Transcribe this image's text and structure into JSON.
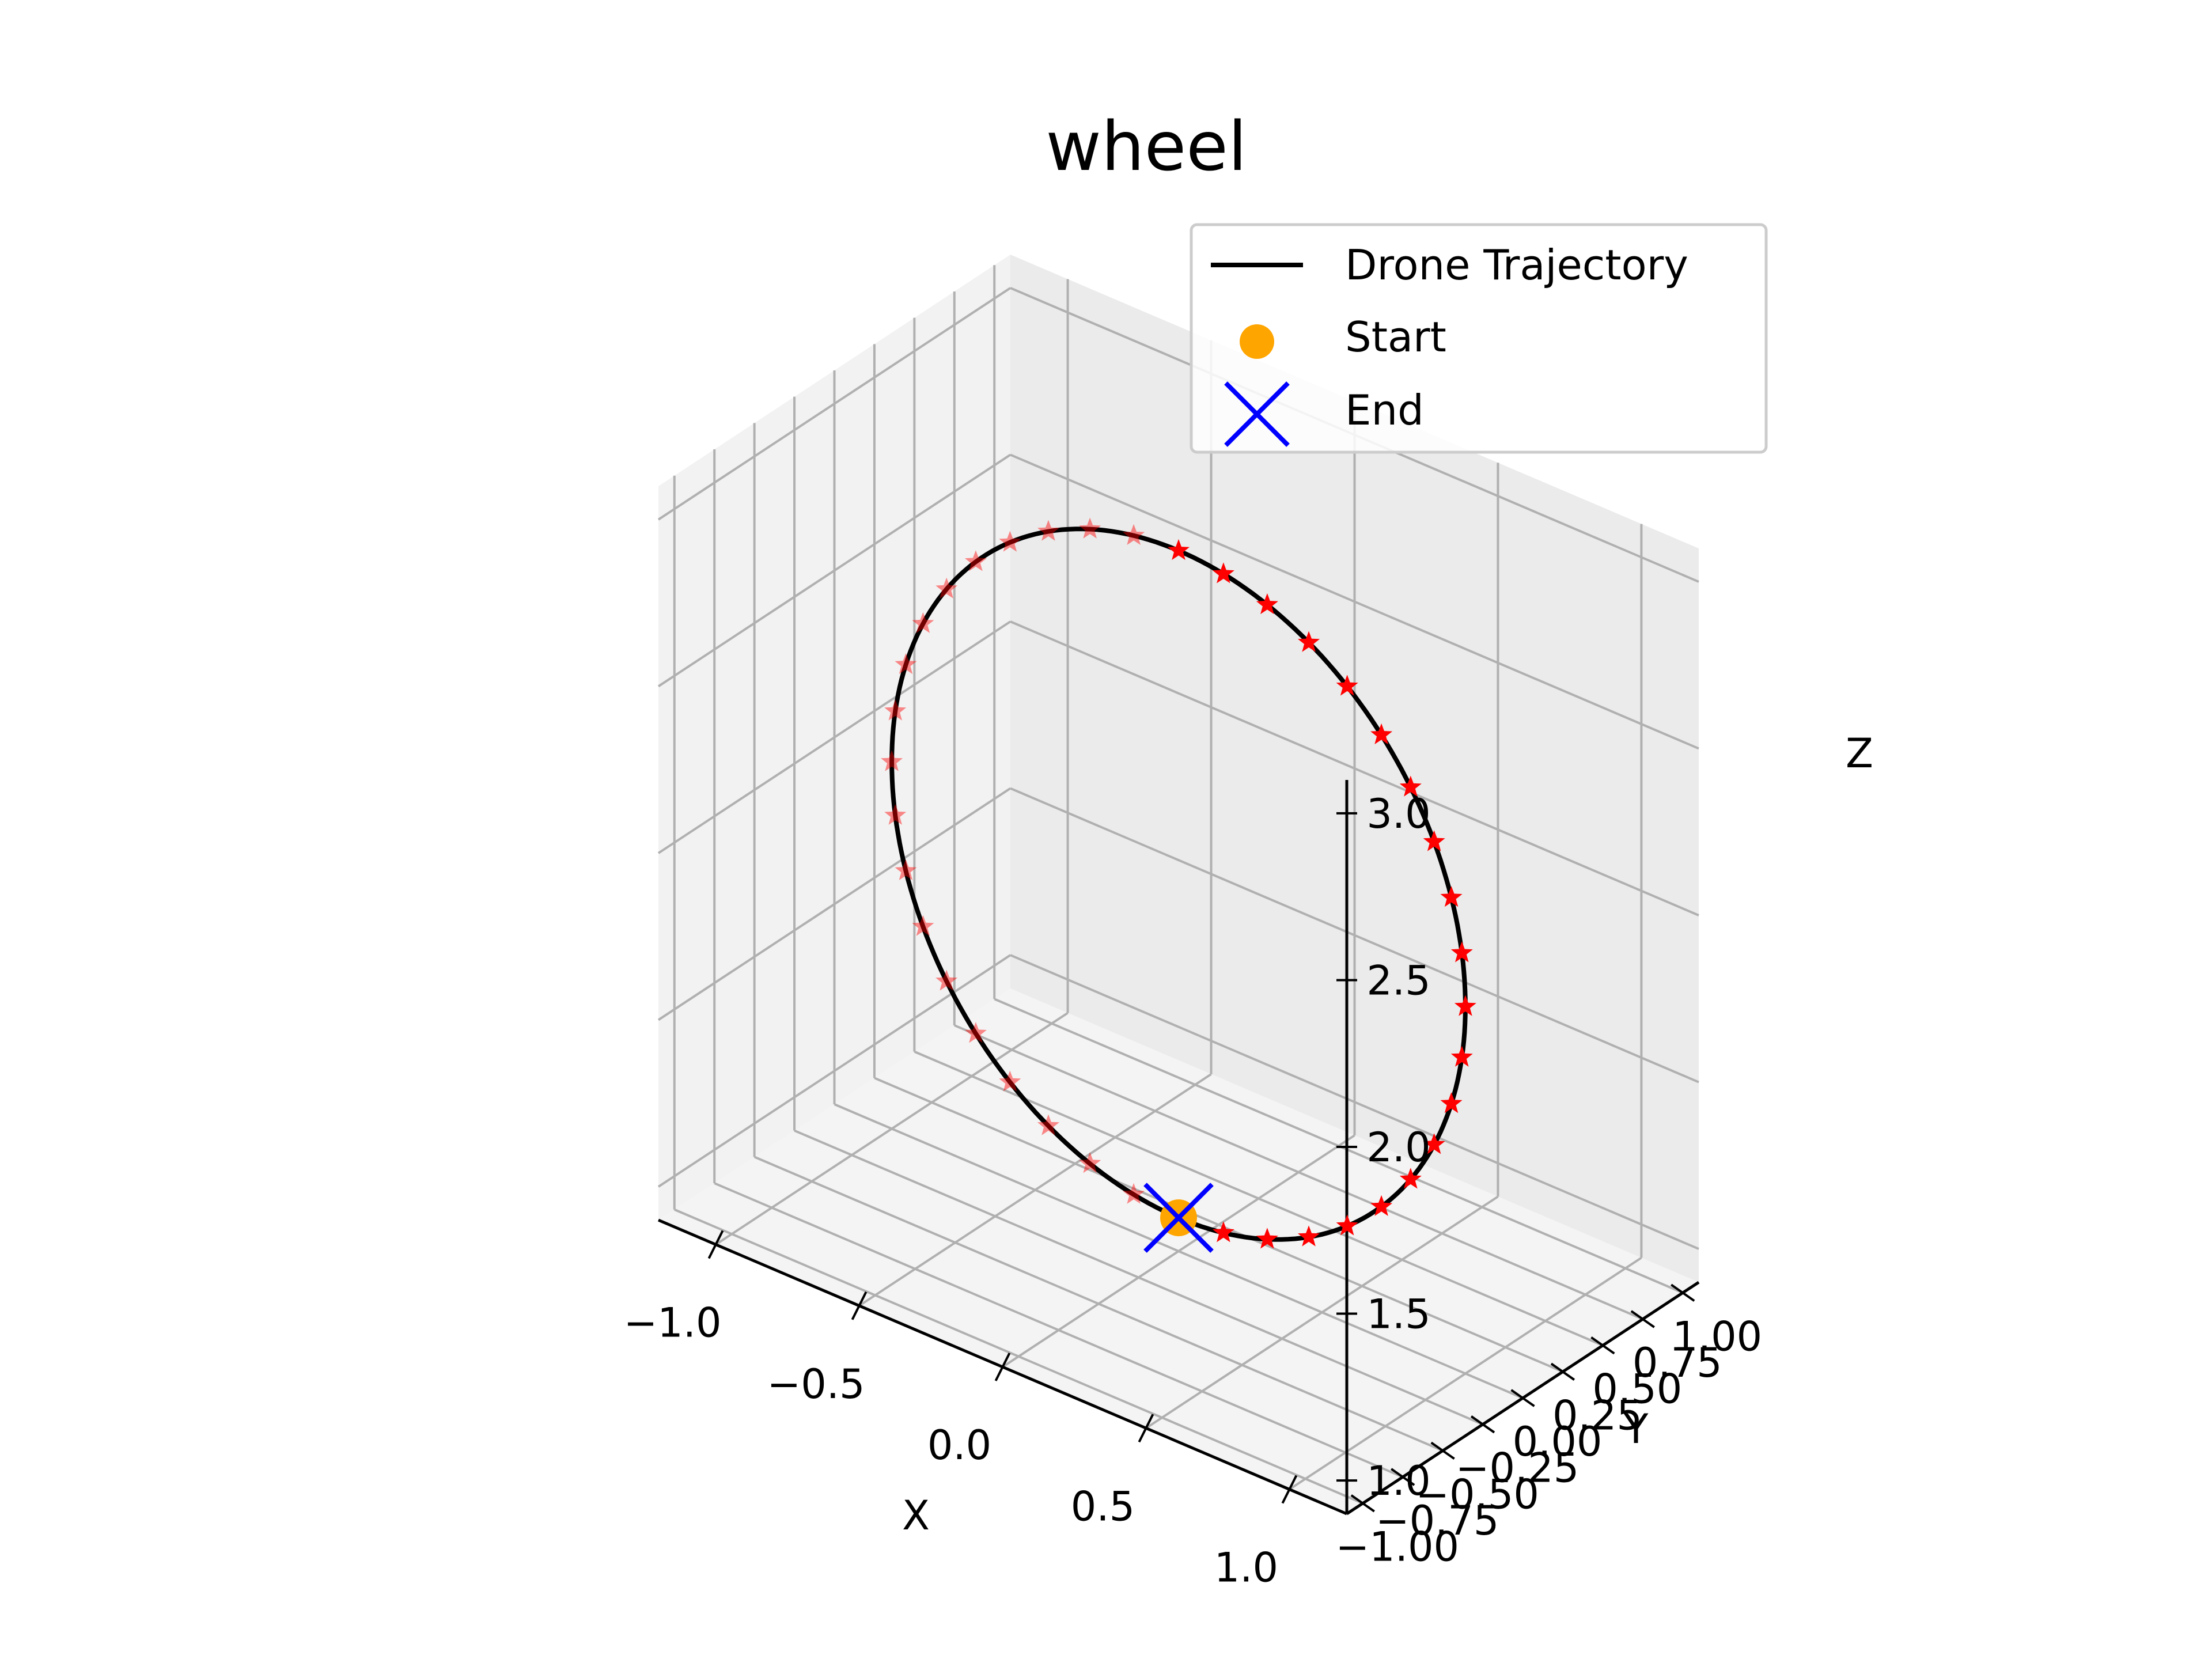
{
  "chart_data": {
    "type": "line3d",
    "title": "wheel",
    "xlabel": "X",
    "ylabel": "Y",
    "zlabel": "Z",
    "xlim": [
      -1.2,
      1.2
    ],
    "ylim": [
      -1.1,
      1.1
    ],
    "zlim": [
      0.9,
      3.1
    ],
    "x_ticks": [
      -1.0,
      -0.5,
      0.0,
      0.5,
      1.0
    ],
    "x_tick_labels": [
      "−1.0",
      "−0.5",
      "0.0",
      "0.5",
      "1.0"
    ],
    "y_ticks": [
      -1.0,
      -0.75,
      -0.5,
      -0.25,
      0.0,
      0.25,
      0.5,
      0.75,
      1.0
    ],
    "y_tick_labels": [
      "−1.00",
      "−0.75",
      "−0.50",
      "−0.25",
      "0.00",
      "0.25",
      "0.50",
      "0.75",
      "1.00"
    ],
    "z_ticks": [
      1.0,
      1.5,
      2.0,
      2.5,
      3.0
    ],
    "z_tick_labels": [
      "1.0",
      "1.5",
      "2.0",
      "2.5",
      "3.0"
    ],
    "grid": true,
    "legend_position": "upper-right",
    "series": [
      {
        "name": "Drone Trajectory",
        "kind": "line",
        "color": "#000000",
        "shape": "circle",
        "center": [
          0.0,
          0.0,
          2.0
        ],
        "radius": 1.0,
        "plane": "x-z",
        "samples": 40
      },
      {
        "name": "Start",
        "kind": "scatter",
        "color": "#ffa500",
        "marker": "circle",
        "point": [
          0.0,
          0.0,
          1.0
        ]
      },
      {
        "name": "End",
        "kind": "scatter",
        "color": "#0000ff",
        "marker": "x",
        "point": [
          0.0,
          0.0,
          1.0
        ]
      },
      {
        "kind": "scatter",
        "color": "#ff0000",
        "marker": "star",
        "note_source": "waypoints"
      }
    ],
    "legend": [
      {
        "label": "Drone Trajectory",
        "marker": "line",
        "color": "#000000"
      },
      {
        "label": "Start",
        "marker": "circle",
        "color": "#ffa500"
      },
      {
        "label": "End",
        "marker": "x",
        "color": "#0000ff"
      }
    ]
  }
}
